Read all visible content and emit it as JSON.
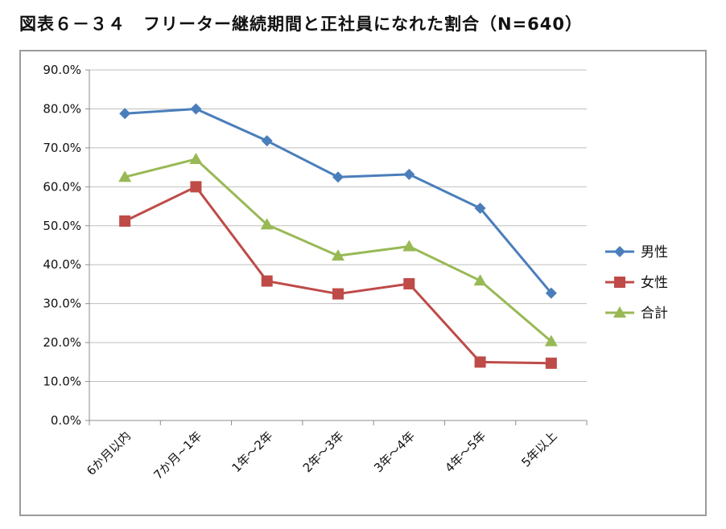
{
  "title": "図表６－３４　フリーター継続期間と正社員になれた割合（N=640）",
  "chart_data": {
    "type": "line",
    "title": "",
    "xlabel": "",
    "ylabel": "",
    "categories": [
      "6か月以内",
      "7か月~1年",
      "1年～2年",
      "2年～3年",
      "3年～4年",
      "4年～5年",
      "5年以上"
    ],
    "y_ticks": [
      "0.0%",
      "10.0%",
      "20.0%",
      "30.0%",
      "40.0%",
      "50.0%",
      "60.0%",
      "70.0%",
      "80.0%",
      "90.0%"
    ],
    "ylim": [
      0,
      90
    ],
    "grid": true,
    "legend_position": "right",
    "series": [
      {
        "name": "男性",
        "color": "#4a7ebb",
        "marker": "diamond",
        "values": [
          78.8,
          80.0,
          71.8,
          62.5,
          63.2,
          54.5,
          32.7
        ]
      },
      {
        "name": "女性",
        "color": "#be4b48",
        "marker": "square",
        "values": [
          51.2,
          60.0,
          35.8,
          32.5,
          35.1,
          15.0,
          14.7
        ]
      },
      {
        "name": "合計",
        "color": "#98b954",
        "marker": "triangle",
        "values": [
          62.5,
          67.1,
          50.3,
          42.3,
          44.7,
          35.9,
          20.3
        ]
      }
    ]
  }
}
